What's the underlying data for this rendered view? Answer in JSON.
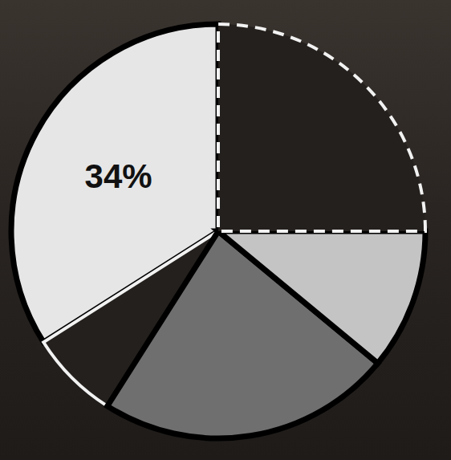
{
  "chart_data": {
    "type": "pie",
    "categories": [
      null,
      null,
      null,
      null,
      null
    ],
    "values": [
      34,
      7,
      23,
      11,
      25
    ],
    "value_labels": [
      "34%",
      null,
      null,
      null,
      null
    ],
    "colors": [
      "#e6e6e6",
      "#24201d",
      "#6f6f6f",
      "#c4c4c4",
      "#24201d"
    ],
    "data_labels": true
  }
}
